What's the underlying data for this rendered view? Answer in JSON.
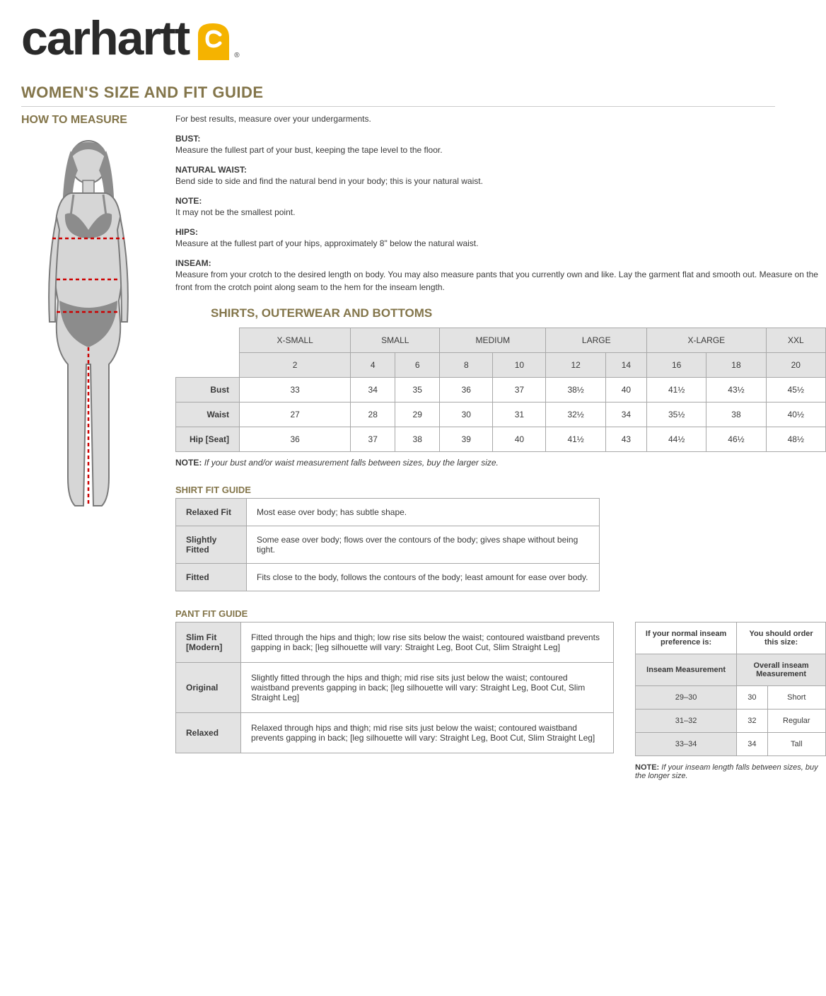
{
  "brand": "carhartt",
  "mainTitle": "WOMEN'S SIZE AND FIT GUIDE",
  "howToTitle": "HOW TO MEASURE",
  "intro": "For best results, measure over your undergarments.",
  "measures": [
    {
      "label": "BUST:",
      "text": "Measure the fullest part of your bust, keeping the tape level to the floor."
    },
    {
      "label": "NATURAL WAIST:",
      "text": "Bend side to side and find the natural bend in your body; this is your natural waist."
    },
    {
      "label": "NOTE:",
      "text": "It may not be the smallest point."
    },
    {
      "label": "HIPS:",
      "text": "Measure at the fullest part of your hips, approximately 8\" below the natural waist."
    },
    {
      "label": "INSEAM:",
      "text": "Measure from your crotch to the desired length on body. You may also measure pants that you currently own and like. Lay the garment flat and smooth out. Measure on the front from the crotch point along seam to the hem for the inseam length."
    }
  ],
  "sizeSection": "SHIRTS, OUTERWEAR AND BOTTOMS",
  "sizeHeaders": [
    "X-SMALL",
    "SMALL",
    "MEDIUM",
    "LARGE",
    "X-LARGE",
    "XXL"
  ],
  "sizeNumbers": [
    "2",
    "4",
    "6",
    "8",
    "10",
    "12",
    "14",
    "16",
    "18",
    "20"
  ],
  "sizeRows": [
    {
      "label": "Bust",
      "vals": [
        "33",
        "34",
        "35",
        "36",
        "37",
        "38½",
        "40",
        "41½",
        "43½",
        "45½"
      ]
    },
    {
      "label": "Waist",
      "vals": [
        "27",
        "28",
        "29",
        "30",
        "31",
        "32½",
        "34",
        "35½",
        "38",
        "40½"
      ]
    },
    {
      "label": "Hip [Seat]",
      "vals": [
        "36",
        "37",
        "38",
        "39",
        "40",
        "41½",
        "43",
        "44½",
        "46½",
        "48½"
      ]
    }
  ],
  "sizeNoteBold": "NOTE:",
  "sizeNote": "If your bust and/or waist measurement falls between sizes, buy the larger size.",
  "shirtFitTitle": "SHIRT FIT GUIDE",
  "shirtFits": [
    {
      "label": "Relaxed Fit",
      "text": "Most ease over body; has subtle shape."
    },
    {
      "label": "Slightly Fitted",
      "text": "Some ease over body; flows over the contours of the body; gives shape without being tight."
    },
    {
      "label": "Fitted",
      "text": "Fits close to the body, follows the contours of the body; least amount for ease over body."
    }
  ],
  "pantFitTitle": "PANT FIT GUIDE",
  "pantFits": [
    {
      "label": "Slim Fit [Modern]",
      "text": "Fitted through the hips and thigh; low rise sits below the waist; contoured waistband prevents gapping in back; [leg silhouette will vary: Straight Leg, Boot Cut, Slim Straight Leg]"
    },
    {
      "label": "Original",
      "text": "Slightly fitted through the hips and thigh; mid rise sits just below the waist; contoured waistband prevents gapping in back; [leg silhouette will vary: Straight Leg, Boot Cut, Slim Straight Leg]"
    },
    {
      "label": "Relaxed",
      "text": "Relaxed through hips and thigh; mid rise sits just below the waist; contoured waistband prevents gapping in back; [leg silhouette will vary: Straight Leg, Boot Cut, Slim Straight Leg]"
    }
  ],
  "inseam": {
    "hdr1": "If your normal inseam preference is:",
    "hdr2": "You should order this size:",
    "sub1": "Inseam Measurement",
    "sub2": "Overall inseam Measurement",
    "rows": [
      {
        "range": "29–30",
        "n": "30",
        "label": "Short"
      },
      {
        "range": "31–32",
        "n": "32",
        "label": "Regular"
      },
      {
        "range": "33–34",
        "n": "34",
        "label": "Tall"
      }
    ],
    "noteBold": "NOTE:",
    "note": "If your inseam length falls between sizes, buy the longer size."
  },
  "colors": {
    "accent": "#83754a",
    "yellow": "#f5b300",
    "gray": "#8c8c8c",
    "lightGray": "#d6d6d6",
    "border": "#a8a8a8",
    "dashRed": "#cc0000"
  }
}
